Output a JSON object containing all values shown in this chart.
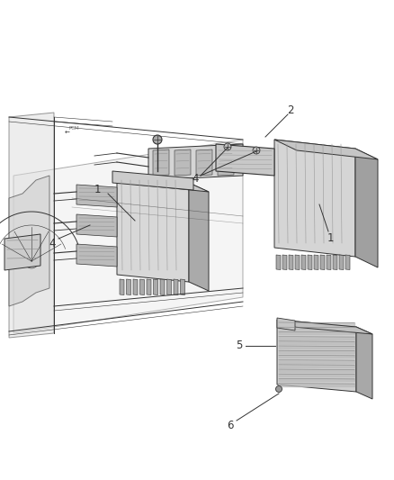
{
  "bg_color": "#f0f0f0",
  "line_color": "#555555",
  "dark_color": "#333333",
  "light_gray": "#cccccc",
  "mid_gray": "#aaaaaa",
  "figsize": [
    4.38,
    5.33
  ],
  "dpi": 100,
  "label_fs": 7.5,
  "callout_color": "#333333",
  "white": "#ffffff",
  "part_fill": "#d8d8d8",
  "part_dark": "#888888",
  "part_light": "#e8e8e8",
  "shadow": "#bbbbbb"
}
